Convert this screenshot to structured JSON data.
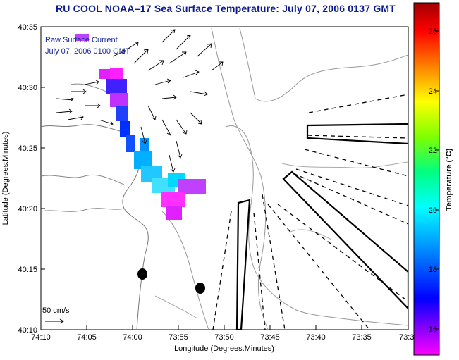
{
  "title": "RU COOL  NOAA–17  Sea Surface Temperature:  July 07, 2006 0137 GMT",
  "x_axis": {
    "label": "Longitude (Degrees:Minutes)",
    "ticks": [
      "74:10",
      "74:05",
      "74:00",
      "73:55",
      "73:50",
      "73:45",
      "73:40",
      "73:35",
      "73:3"
    ]
  },
  "y_axis": {
    "label": "Latitude (Degrees:Minutes)",
    "ticks": [
      "40:35",
      "40:30",
      "40:25",
      "40:20",
      "40:15",
      "40:10"
    ]
  },
  "legend": {
    "line1": "Raw Surface Current",
    "line2": "July 07, 2006 0100 GMT"
  },
  "scale": {
    "label": "50 cm/s"
  },
  "colorbar": {
    "label": "Temperature (°C)",
    "ticks": [
      "26",
      "24",
      "22",
      "20",
      "18",
      "16"
    ],
    "range": [
      15,
      27
    ]
  },
  "colors": {
    "title": "#0b1a8c",
    "legend": "#1a2a9c"
  }
}
